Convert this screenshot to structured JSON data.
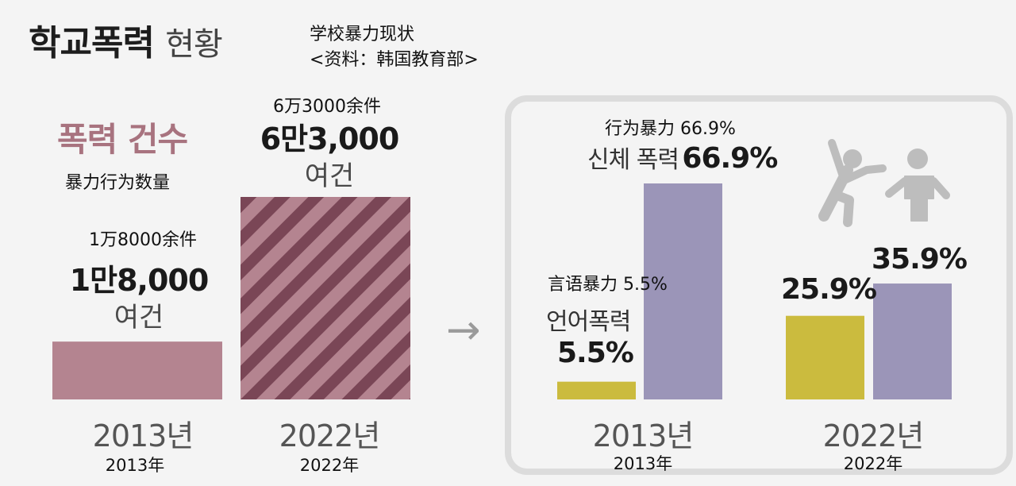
{
  "header": {
    "title_bold": "학교폭력",
    "title_light": "현황",
    "subtitle_cn_line1": "学校暴力现状",
    "subtitle_cn_line2": "<资料：韩国教育部>"
  },
  "left": {
    "heading_ko": "폭력 건수",
    "heading_cn": "暴力行为数量",
    "bars": [
      {
        "year_ko": "2013년",
        "year_cn": "2013年",
        "note_cn": "1万8000余件",
        "value_label": "1만8,000",
        "unit_ko": "여건"
      },
      {
        "year_ko": "2022년",
        "year_cn": "2022年",
        "note_cn": "6万3000余件",
        "value_label": "6만3,000",
        "unit_ko": "여건"
      }
    ]
  },
  "right": {
    "labels": {
      "physical_cn": "行为暴力 66.9%",
      "physical_ko": "신체 폭력",
      "physical_pct": "66.9%",
      "verbal_cn": "言语暴力 5.5%",
      "verbal_ko": "언어폭력",
      "verbal_pct": "5.5%",
      "verbal_2022": "25.9%",
      "physical_2022": "35.9%"
    },
    "years": [
      {
        "ko": "2013년",
        "cn": "2013年"
      },
      {
        "ko": "2022년",
        "cn": "2022年"
      }
    ]
  },
  "icons": {
    "arrow": "arrow-right-icon",
    "people": "violence-people-icon"
  },
  "colors": {
    "left_bar": "#b48490",
    "left_bar_hatch": "#7a4656",
    "verbal": "#cbbb3e",
    "physical": "#9b95b8"
  },
  "chart_data": [
    {
      "type": "bar",
      "title": "폭력 건수",
      "categories": [
        "2013년",
        "2022년"
      ],
      "values": [
        18000,
        63000
      ],
      "value_labels": [
        "1만8,000 여건",
        "6만3,000 여건"
      ],
      "ylim": [
        0,
        63000
      ]
    },
    {
      "type": "bar",
      "categories": [
        "2013년",
        "2022년"
      ],
      "series": [
        {
          "name": "언어폭력",
          "values": [
            5.5,
            25.9
          ]
        },
        {
          "name": "신체 폭력",
          "values": [
            66.9,
            35.9
          ]
        }
      ],
      "ylim": [
        0,
        66.9
      ]
    }
  ]
}
